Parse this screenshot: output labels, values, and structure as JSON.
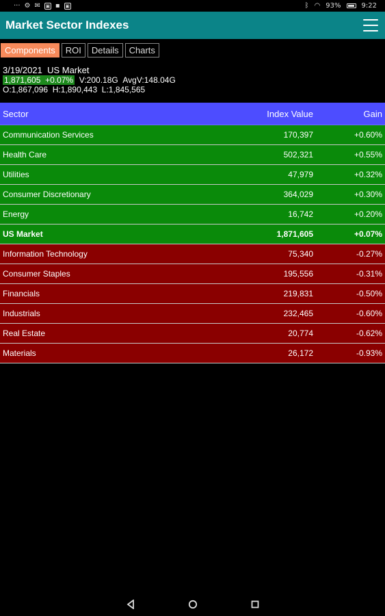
{
  "status_bar": {
    "left_icons": [
      "dots-icon",
      "gear-icon",
      "mail-icon",
      "image-icon",
      "app-icon",
      "image-icon"
    ],
    "battery": "93%",
    "time": "9:22"
  },
  "app_bar": {
    "title": "Market Sector Indexes"
  },
  "tabs": [
    {
      "label": "Components",
      "active": true
    },
    {
      "label": "ROI",
      "active": false
    },
    {
      "label": "Details",
      "active": false
    },
    {
      "label": "Charts",
      "active": false
    }
  ],
  "summary": {
    "date": "3/19/2021",
    "market": "US Market",
    "price": "1,871,605",
    "change": "+0.07%",
    "volume": "V:200.18G",
    "avg_volume": "AvgV:148.04G",
    "open": "O:1,867,096",
    "high": "H:1,890,443",
    "low": "L:1,845,565"
  },
  "table": {
    "headers": {
      "sector": "Sector",
      "value": "Index Value",
      "gain": "Gain"
    },
    "rows": [
      {
        "sector": "Communication Services",
        "value": "170,397",
        "gain": "+0.60%",
        "dir": "up"
      },
      {
        "sector": "Health Care",
        "value": "502,321",
        "gain": "+0.55%",
        "dir": "up"
      },
      {
        "sector": "Utilities",
        "value": "47,979",
        "gain": "+0.32%",
        "dir": "up"
      },
      {
        "sector": "Consumer Discretionary",
        "value": "364,029",
        "gain": "+0.30%",
        "dir": "up"
      },
      {
        "sector": "Energy",
        "value": "16,742",
        "gain": "+0.20%",
        "dir": "up"
      },
      {
        "sector": "US Market",
        "value": "1,871,605",
        "gain": "+0.07%",
        "dir": "up",
        "bold": true
      },
      {
        "sector": "Information Technology",
        "value": "75,340",
        "gain": "-0.27%",
        "dir": "down"
      },
      {
        "sector": "Consumer Staples",
        "value": "195,556",
        "gain": "-0.31%",
        "dir": "down"
      },
      {
        "sector": "Financials",
        "value": "219,831",
        "gain": "-0.50%",
        "dir": "down"
      },
      {
        "sector": "Industrials",
        "value": "232,465",
        "gain": "-0.60%",
        "dir": "down"
      },
      {
        "sector": "Real Estate",
        "value": "20,774",
        "gain": "-0.62%",
        "dir": "down"
      },
      {
        "sector": "Materials",
        "value": "26,172",
        "gain": "-0.93%",
        "dir": "down"
      }
    ]
  },
  "colors": {
    "app_bar": "#0b8488",
    "tab_active": "#f78a5b",
    "header": "#4d4dff",
    "gain_up": "#0a8a0a",
    "gain_down": "#8a0000"
  },
  "nav_bar": {
    "icons": [
      "back-icon",
      "home-icon",
      "recents-icon"
    ]
  }
}
